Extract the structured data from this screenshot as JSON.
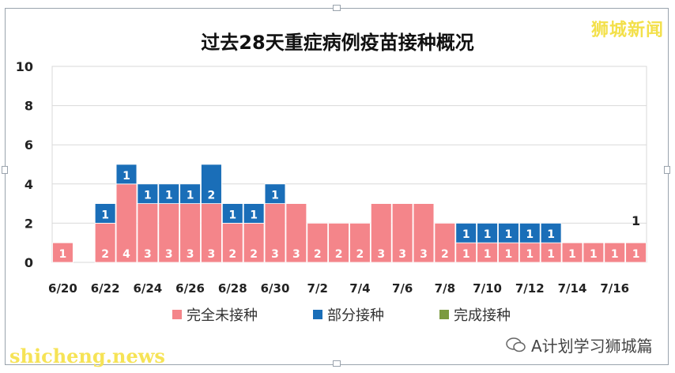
{
  "watermark_top": "狮城新闻",
  "footer_left": "shicheng.news",
  "footer_right": "A计划学习狮城篇",
  "colors": {
    "unvaccinated": "#f4858a",
    "partial": "#1a6eb8",
    "full": "#7b9a3f",
    "grid": "#d9d9d9",
    "axis_text": "#222222"
  },
  "chart_data": {
    "type": "bar",
    "stacked": true,
    "title": "过去28天重症病例疫苗接种概况",
    "ylim": [
      0,
      10
    ],
    "yticks": [
      0,
      2,
      4,
      6,
      8,
      10
    ],
    "grid": true,
    "legend_position": "bottom",
    "categories": [
      "6/20",
      "6/21",
      "6/22",
      "6/23",
      "6/24",
      "6/25",
      "6/26",
      "6/27",
      "6/28",
      "6/29",
      "6/30",
      "7/1",
      "7/2",
      "7/3",
      "7/4",
      "7/5",
      "7/6",
      "7/7",
      "7/8",
      "7/9",
      "7/10",
      "7/11",
      "7/12",
      "7/13",
      "7/14",
      "7/15",
      "7/16",
      "7/17"
    ],
    "xtick_labels": [
      "6/20",
      "6/22",
      "6/24",
      "6/26",
      "6/28",
      "6/30",
      "7/2",
      "7/4",
      "7/6",
      "7/8",
      "7/10",
      "7/12",
      "7/14",
      "7/16"
    ],
    "series": [
      {
        "name": "完全未接种",
        "values": [
          1,
          0,
          2,
          4,
          3,
          3,
          3,
          3,
          2,
          2,
          3,
          3,
          2,
          2,
          2,
          3,
          3,
          3,
          2,
          1,
          1,
          1,
          1,
          1,
          1,
          1,
          1,
          1
        ]
      },
      {
        "name": "部分接种",
        "values": [
          0,
          0,
          1,
          1,
          1,
          1,
          1,
          2,
          1,
          1,
          1,
          0,
          0,
          0,
          0,
          0,
          0,
          0,
          0,
          1,
          1,
          1,
          1,
          1,
          0,
          0,
          0,
          0
        ]
      },
      {
        "name": "完成接种",
        "values": [
          0,
          0,
          0,
          0,
          0,
          0,
          0,
          0,
          0,
          0,
          0,
          0,
          0,
          0,
          0,
          0,
          0,
          0,
          0,
          0,
          0,
          0,
          0,
          0,
          0,
          0,
          0,
          0
        ]
      }
    ],
    "annotations": [
      {
        "text": "1",
        "category": "7/17"
      }
    ]
  }
}
